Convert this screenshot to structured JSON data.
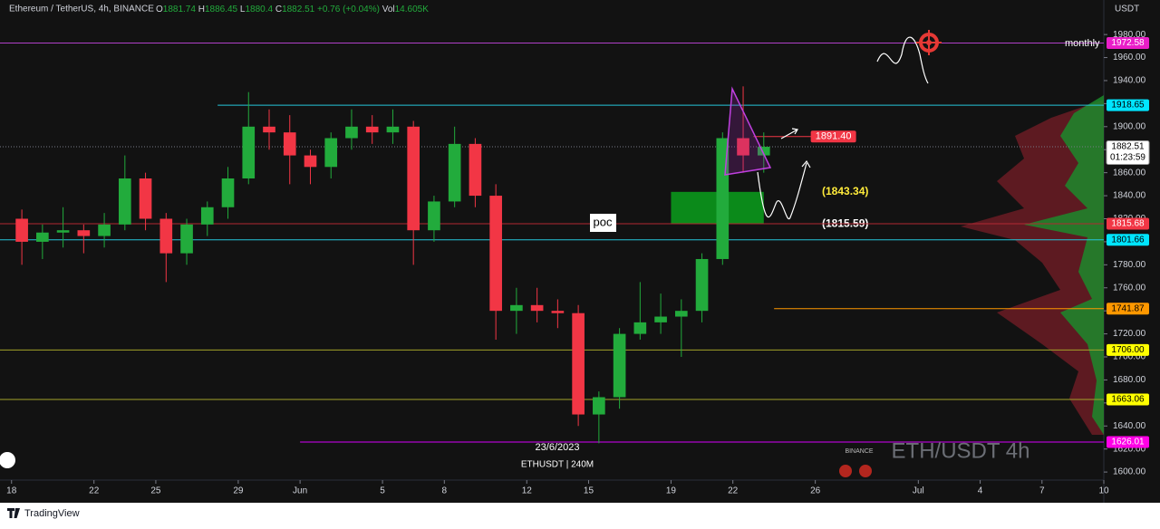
{
  "chart_data": {
    "type": "candlestick",
    "header": {
      "symbol": "Ethereum / TetherUS, 4h, BINANCE",
      "ohlc": [
        {
          "key": "O",
          "value": 1881.74
        },
        {
          "key": "H",
          "value": 1886.45
        },
        {
          "key": "L",
          "value": 1880.4
        },
        {
          "key": "C",
          "value": 1882.51
        }
      ],
      "change": "+0.76 (+0.04%)",
      "volume_key": "Vol",
      "volume": "14.605K"
    },
    "currency": "USDT",
    "x": [
      "2023-05-18",
      "2023-05-19",
      "2023-05-20",
      "2023-05-21",
      "2023-05-22",
      "2023-05-23",
      "2023-05-24",
      "2023-05-25",
      "2023-05-26",
      "2023-05-27",
      "2023-05-28",
      "2023-05-29",
      "2023-05-30",
      "2023-05-31",
      "2023-06-01",
      "2023-06-02",
      "2023-06-03",
      "2023-06-04",
      "2023-06-05",
      "2023-06-06",
      "2023-06-07",
      "2023-06-08",
      "2023-06-09",
      "2023-06-10",
      "2023-06-11",
      "2023-06-12",
      "2023-06-13",
      "2023-06-14",
      "2023-06-15",
      "2023-06-16",
      "2023-06-17",
      "2023-06-18",
      "2023-06-19",
      "2023-06-20",
      "2023-06-21",
      "2023-06-22",
      "2023-06-23"
    ],
    "open": [
      1820,
      1800,
      1808,
      1810,
      1805,
      1815,
      1855,
      1820,
      1790,
      1815,
      1830,
      1855,
      1900,
      1895,
      1875,
      1865,
      1890,
      1900,
      1895,
      1900,
      1810,
      1835,
      1885,
      1840,
      1740,
      1745,
      1740,
      1738,
      1650,
      1665,
      1720,
      1730,
      1735,
      1740,
      1785,
      1890,
      1875
    ],
    "high": [
      1828,
      1815,
      1830,
      1815,
      1825,
      1875,
      1860,
      1825,
      1820,
      1835,
      1865,
      1930,
      1915,
      1910,
      1880,
      1895,
      1915,
      1910,
      1915,
      1905,
      1840,
      1900,
      1890,
      1850,
      1760,
      1760,
      1750,
      1745,
      1670,
      1725,
      1765,
      1755,
      1750,
      1790,
      1895,
      1935,
      1895
    ],
    "low": [
      1780,
      1785,
      1795,
      1790,
      1795,
      1810,
      1810,
      1765,
      1780,
      1805,
      1820,
      1850,
      1880,
      1850,
      1850,
      1855,
      1880,
      1885,
      1885,
      1780,
      1800,
      1830,
      1830,
      1715,
      1720,
      1730,
      1725,
      1640,
      1625,
      1655,
      1715,
      1720,
      1700,
      1730,
      1780,
      1860,
      1860
    ],
    "close": [
      1800,
      1808,
      1810,
      1805,
      1815,
      1855,
      1820,
      1790,
      1815,
      1830,
      1855,
      1900,
      1895,
      1875,
      1865,
      1890,
      1900,
      1895,
      1900,
      1810,
      1835,
      1885,
      1840,
      1740,
      1745,
      1740,
      1738,
      1650,
      1665,
      1720,
      1730,
      1735,
      1740,
      1785,
      1890,
      1875,
      1882.51
    ],
    "up_color": "#22ab3c",
    "down_color": "#f23645",
    "xlim": [
      "2023-05-17",
      "2023-07-10"
    ],
    "xticks": [
      {
        "value": "2023-05-18",
        "label": "18"
      },
      {
        "value": "2023-05-22",
        "label": "22"
      },
      {
        "value": "2023-05-25",
        "label": "25"
      },
      {
        "value": "2023-05-29",
        "label": "29"
      },
      {
        "value": "2023-06-01",
        "label": "Jun"
      },
      {
        "value": "2023-06-05",
        "label": "5"
      },
      {
        "value": "2023-06-08",
        "label": "8"
      },
      {
        "value": "2023-06-12",
        "label": "12"
      },
      {
        "value": "2023-06-15",
        "label": "15"
      },
      {
        "value": "2023-06-19",
        "label": "19"
      },
      {
        "value": "2023-06-22",
        "label": "22"
      },
      {
        "value": "2023-06-26",
        "label": "26"
      },
      {
        "value": "2023-07-01",
        "label": "Jul"
      },
      {
        "value": "2023-07-04",
        "label": "4"
      },
      {
        "value": "2023-07-07",
        "label": "7"
      },
      {
        "value": "2023-07-10",
        "label": "10"
      }
    ],
    "ylim": [
      1593,
      2010
    ],
    "yticks": [
      {
        "value": 1600,
        "label": "1600.00"
      },
      {
        "value": 1620,
        "label": "1620.00"
      },
      {
        "value": 1640,
        "label": "1640.00"
      },
      {
        "value": 1660,
        "label": "1660.00"
      },
      {
        "value": 1680,
        "label": "1680.00"
      },
      {
        "value": 1700,
        "label": "1700.00"
      },
      {
        "value": 1720,
        "label": "1720.00"
      },
      {
        "value": 1740,
        "label": "1740.00"
      },
      {
        "value": 1760,
        "label": "1760.00"
      },
      {
        "value": 1780,
        "label": "1780.00"
      },
      {
        "value": 1800,
        "label": "1800.00"
      },
      {
        "value": 1820,
        "label": "1820.00"
      },
      {
        "value": 1840,
        "label": "1840.00"
      },
      {
        "value": 1860,
        "label": "1860.00"
      },
      {
        "value": 1880,
        "label": "1880.00"
      },
      {
        "value": 1900,
        "label": "1900.00"
      },
      {
        "value": 1920,
        "label": "1920.00"
      },
      {
        "value": 1940,
        "label": "1940.00"
      },
      {
        "value": 1960,
        "label": "1960.00"
      },
      {
        "value": 1980,
        "label": "1980.00"
      }
    ],
    "levels": [
      {
        "value": 1972.58,
        "label": "1972.58",
        "color": "#b040c8",
        "label_color": "#e91ec8",
        "text_color": "#ffffff"
      },
      {
        "value": 1918.65,
        "label": "1918.65",
        "color": "#26c6da",
        "label_color": "#00e5ff",
        "text_color": "#000000",
        "from": "2023-05-28"
      },
      {
        "value": 1891.4,
        "label": "1891.40",
        "color": "#f23645",
        "label_color": "#f23645",
        "text_color": "#ffffff",
        "from": "2023-06-23",
        "to": "2023-06-26"
      },
      {
        "value": 1882.51,
        "label": "1882.51",
        "sublabel": "01:23:59",
        "color": "#787b86",
        "label_color": "#ffffff",
        "text_color": "#000000",
        "dotted": true
      },
      {
        "value": 1815.68,
        "label": "1815.68",
        "color": "#b22833",
        "label_color": "#f23645",
        "text_color": "#ffffff"
      },
      {
        "value": 1801.66,
        "label": "1801.66",
        "color": "#26c6da",
        "label_color": "#00e5ff",
        "text_color": "#000000"
      },
      {
        "value": 1741.87,
        "label": "1741.87",
        "color": "#ff9800",
        "label_color": "#ff9800",
        "text_color": "#000000",
        "from": "2023-06-24"
      },
      {
        "value": 1706.0,
        "label": "1706.00",
        "color": "#a3a22a",
        "label_color": "#ffff00",
        "text_color": "#000000"
      },
      {
        "value": 1663.06,
        "label": "1663.06",
        "color": "#a3a22a",
        "label_color": "#ffff00",
        "text_color": "#000000"
      },
      {
        "value": 1626.01,
        "label": "1626.01",
        "color": "#d500f9",
        "label_color": "#ff00e6",
        "text_color": "#ffffff",
        "from": "2023-06-01"
      }
    ],
    "zone": {
      "top": 1843.34,
      "bottom": 1815.59,
      "from": "2023-06-19",
      "to": "2023-06-23",
      "color": "#0b8a1a",
      "labels": [
        "(1843.34)",
        "(1815.59)"
      ]
    },
    "annotations": {
      "monthly": "monthly",
      "poc": "poc",
      "date": "23/6/2023",
      "ticker": "ETHUSDT | 240M",
      "exchange": "BINANCE",
      "watermark": "ETH/USDT 4h"
    },
    "brand": "TradingView"
  }
}
